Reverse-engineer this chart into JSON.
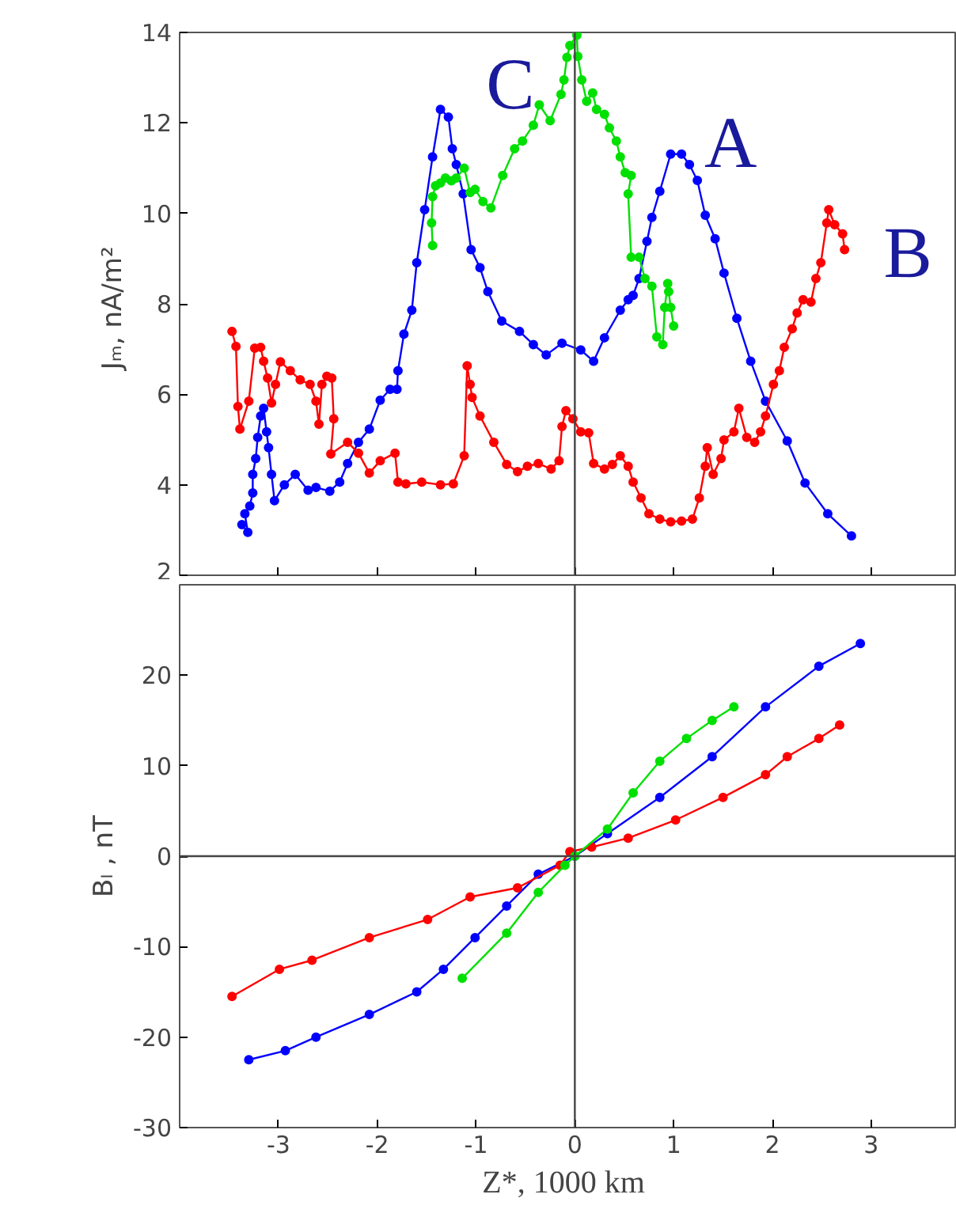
{
  "chart_data": [
    {
      "type": "line",
      "ylabel": "Jₘ,  nA/m²",
      "xlim": [
        -4,
        3.85
      ],
      "ylim": [
        2,
        14
      ],
      "xticks": [
        -3,
        -2,
        -1,
        0,
        1,
        2,
        3
      ],
      "yticks": [
        2,
        4,
        6,
        8,
        10,
        12,
        14
      ],
      "tick_labels": "y",
      "marker": "circle",
      "line_style": "solid",
      "grid": false,
      "ref_lines": [
        {
          "axis": "x",
          "value": 0,
          "color": "#444444"
        }
      ],
      "series": [
        {
          "name": "A",
          "color": "#0000ff",
          "x": [
            -3.37,
            -3.31,
            -3.34,
            -3.29,
            -3.26,
            -3.26,
            -3.23,
            -3.21,
            -3.18,
            -3.15,
            -3.12,
            -3.1,
            -3.07,
            -3.04,
            -2.94,
            -2.83,
            -2.7,
            -2.62,
            -2.48,
            -2.38,
            -2.3,
            -2.19,
            -2.08,
            -1.97,
            -1.87,
            -1.8,
            -1.79,
            -1.73,
            -1.65,
            -1.6,
            -1.52,
            -1.44,
            -1.36,
            -1.28,
            -1.24,
            -1.2,
            -1.13,
            -1.05,
            -0.96,
            -0.88,
            -0.74,
            -0.56,
            -0.42,
            -0.29,
            -0.13,
            0.06,
            0.19,
            0.3,
            0.46,
            0.54,
            0.59,
            0.65,
            0.73,
            0.78,
            0.86,
            0.97,
            1.08,
            1.16,
            1.24,
            1.32,
            1.42,
            1.51,
            1.64,
            1.78,
            1.93,
            2.15,
            2.33,
            2.56,
            2.8
          ],
          "values": [
            3.12,
            2.95,
            3.36,
            3.53,
            3.82,
            4.23,
            4.58,
            5.05,
            5.52,
            5.69,
            5.17,
            4.82,
            4.23,
            3.65,
            4.0,
            4.23,
            3.88,
            3.94,
            3.86,
            4.06,
            4.47,
            4.94,
            5.23,
            5.87,
            6.11,
            6.11,
            6.52,
            7.33,
            7.86,
            8.91,
            10.08,
            11.25,
            12.3,
            12.13,
            11.43,
            11.08,
            10.43,
            9.2,
            8.8,
            8.27,
            7.62,
            7.39,
            7.1,
            6.87,
            7.13,
            6.98,
            6.73,
            7.25,
            7.86,
            8.09,
            8.19,
            8.56,
            9.38,
            9.91,
            10.49,
            11.31,
            11.31,
            11.08,
            10.73,
            9.96,
            9.44,
            8.68,
            7.68,
            6.73,
            5.85,
            4.97,
            4.04,
            3.36,
            2.87
          ]
        },
        {
          "name": "B",
          "color": "#ff0000",
          "x": [
            -3.47,
            -3.43,
            -3.41,
            -3.39,
            -3.3,
            -3.24,
            -3.18,
            -3.15,
            -3.11,
            -3.07,
            -3.03,
            -2.98,
            -2.88,
            -2.78,
            -2.68,
            -2.62,
            -2.59,
            -2.56,
            -2.51,
            -2.46,
            -2.44,
            -2.47,
            -2.3,
            -2.19,
            -2.08,
            -1.97,
            -1.82,
            -1.79,
            -1.71,
            -1.55,
            -1.36,
            -1.23,
            -1.12,
            -1.09,
            -1.06,
            -1.04,
            -0.96,
            -0.82,
            -0.69,
            -0.58,
            -0.48,
            -0.37,
            -0.24,
            -0.16,
            -0.13,
            -0.09,
            -0.02,
            0.06,
            0.14,
            0.19,
            0.3,
            0.38,
            0.46,
            0.54,
            0.59,
            0.67,
            0.75,
            0.86,
            0.97,
            1.08,
            1.19,
            1.26,
            1.32,
            1.34,
            1.4,
            1.48,
            1.51,
            1.61,
            1.66,
            1.74,
            1.82,
            1.88,
            1.93,
            2.01,
            2.07,
            2.12,
            2.2,
            2.25,
            2.31,
            2.39,
            2.44,
            2.49,
            2.55,
            2.57,
            2.63,
            2.71,
            2.73
          ],
          "values": [
            7.39,
            7.06,
            5.73,
            5.23,
            5.85,
            7.02,
            7.04,
            6.73,
            6.36,
            5.81,
            6.22,
            6.72,
            6.52,
            6.32,
            6.22,
            5.85,
            5.34,
            6.22,
            6.4,
            6.36,
            5.46,
            4.68,
            4.94,
            4.7,
            4.26,
            4.53,
            4.7,
            4.06,
            4.02,
            4.06,
            4.0,
            4.02,
            4.64,
            6.63,
            6.22,
            5.93,
            5.52,
            4.94,
            4.45,
            4.29,
            4.41,
            4.47,
            4.35,
            4.53,
            5.29,
            5.64,
            5.46,
            5.17,
            5.15,
            4.47,
            4.35,
            4.45,
            4.64,
            4.41,
            4.06,
            3.71,
            3.36,
            3.24,
            3.18,
            3.2,
            3.24,
            3.71,
            4.41,
            4.82,
            4.23,
            4.58,
            4.99,
            5.17,
            5.69,
            5.05,
            4.94,
            5.17,
            5.52,
            6.22,
            6.52,
            7.04,
            7.45,
            7.8,
            8.09,
            8.04,
            8.56,
            8.91,
            9.79,
            10.08,
            9.75,
            9.55,
            9.2
          ]
        },
        {
          "name": "C",
          "color": "#00e000",
          "x": [
            -1.44,
            -1.45,
            -1.44,
            -1.41,
            -1.36,
            -1.31,
            -1.25,
            -1.2,
            -1.12,
            -1.06,
            -1.01,
            -0.93,
            -0.85,
            -0.73,
            -0.61,
            -0.53,
            -0.42,
            -0.36,
            -0.25,
            -0.14,
            -0.11,
            -0.08,
            -0.05,
            0.02,
            0.03,
            0.07,
            0.12,
            0.18,
            0.22,
            0.3,
            0.35,
            0.42,
            0.46,
            0.51,
            0.57,
            0.54,
            0.57,
            0.65,
            0.71,
            0.78,
            0.83,
            0.89,
            0.91,
            0.94,
            0.95,
            0.97,
            1.0
          ],
          "values": [
            9.29,
            9.79,
            10.37,
            10.61,
            10.67,
            10.78,
            10.72,
            10.78,
            11.0,
            10.46,
            10.53,
            10.26,
            10.12,
            10.84,
            11.43,
            11.6,
            11.95,
            12.4,
            12.05,
            12.63,
            12.95,
            13.45,
            13.71,
            13.94,
            13.47,
            12.95,
            12.48,
            12.66,
            12.3,
            12.19,
            11.89,
            11.6,
            11.25,
            10.9,
            10.84,
            10.43,
            9.03,
            9.03,
            8.56,
            8.39,
            7.27,
            7.1,
            7.92,
            8.45,
            8.27,
            7.92,
            7.51
          ]
        }
      ]
    },
    {
      "type": "line",
      "xlabel": "Z*,  1000 km",
      "ylabel": "Bₗ , nT",
      "xlim": [
        -4,
        3.85
      ],
      "ylim": [
        -30,
        30
      ],
      "xticks": [
        -3,
        -2,
        -1,
        0,
        1,
        2,
        3
      ],
      "yticks": [
        -30,
        -20,
        -10,
        0,
        10,
        20
      ],
      "marker": "circle",
      "line_style": "solid",
      "grid": false,
      "ref_lines": [
        {
          "axis": "x",
          "value": 0,
          "color": "#444444"
        },
        {
          "axis": "y",
          "value": 0,
          "color": "#444444"
        }
      ],
      "series": [
        {
          "color": "#0000ff",
          "x": [
            -3.3,
            -2.93,
            -2.62,
            -2.08,
            -1.6,
            -1.33,
            -1.01,
            -0.69,
            -0.37,
            0.0,
            0.33,
            0.86,
            1.39,
            1.93,
            2.47,
            2.89
          ],
          "values": [
            -22.5,
            -21.5,
            -20,
            -17.5,
            -15,
            -12.5,
            -9,
            -5.5,
            -2,
            0,
            2.5,
            6.5,
            11,
            16.5,
            21,
            23.5
          ]
        },
        {
          "color": "#ff0000",
          "x": [
            -3.47,
            -2.99,
            -2.66,
            -2.08,
            -1.49,
            -1.06,
            -0.58,
            -0.15,
            -0.05,
            0.17,
            0.54,
            1.02,
            1.5,
            1.93,
            2.15,
            2.47,
            2.68
          ],
          "values": [
            -15.5,
            -12.5,
            -11.5,
            -9,
            -7,
            -4.5,
            -3.5,
            -1,
            0.5,
            1,
            2,
            4,
            6.5,
            9,
            11,
            13,
            14.5
          ]
        },
        {
          "color": "#00e000",
          "x": [
            -1.14,
            -0.69,
            -0.37,
            -0.1,
            0.0,
            0.33,
            0.59,
            0.86,
            1.13,
            1.39,
            1.61
          ],
          "values": [
            -13.5,
            -8.5,
            -4,
            -1,
            0,
            3,
            7,
            10.5,
            13,
            15,
            16.5
          ]
        }
      ]
    }
  ]
}
